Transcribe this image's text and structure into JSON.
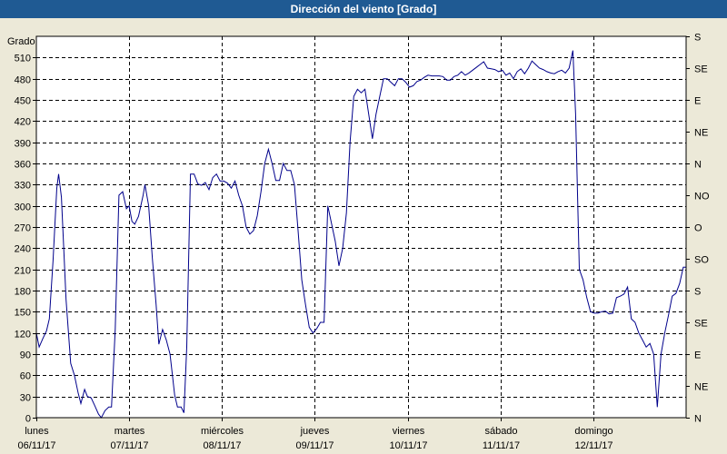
{
  "window": {
    "title": "Dirección del viento [Grado]"
  },
  "chart_data": {
    "type": "line",
    "title": "Dirección del viento [Grado]",
    "ylabel": "Grado",
    "ylim": [
      0,
      540
    ],
    "yticks": [
      0,
      30,
      60,
      90,
      120,
      150,
      180,
      210,
      240,
      270,
      300,
      330,
      360,
      390,
      420,
      450,
      480,
      510
    ],
    "right_axis_labels": [
      "N",
      "NE",
      "E",
      "SE",
      "S",
      "SO",
      "O",
      "NO",
      "N",
      "NE",
      "E",
      "SE",
      "S"
    ],
    "right_axis_values": [
      0,
      30,
      60,
      90,
      120,
      150,
      180,
      210,
      240,
      270,
      300,
      330,
      360
    ],
    "right_axis_scale": 1.5,
    "xlim": [
      0,
      7
    ],
    "xticks": [
      {
        "day": "lunes",
        "date": "06/11/17"
      },
      {
        "day": "martes",
        "date": "07/11/17"
      },
      {
        "day": "miércoles",
        "date": "08/11/17"
      },
      {
        "day": "jueves",
        "date": "09/11/17"
      },
      {
        "day": "viernes",
        "date": "10/11/17"
      },
      {
        "day": "sábado",
        "date": "11/11/17"
      },
      {
        "day": "domingo",
        "date": "12/11/17"
      }
    ],
    "grid": true,
    "series": [
      {
        "color": "#00008b",
        "points": [
          [
            0.0,
            120
          ],
          [
            0.03,
            100
          ],
          [
            0.07,
            112
          ],
          [
            0.11,
            123
          ],
          [
            0.14,
            140
          ],
          [
            0.18,
            223
          ],
          [
            0.22,
            325
          ],
          [
            0.24,
            345
          ],
          [
            0.27,
            312
          ],
          [
            0.32,
            167
          ],
          [
            0.37,
            77
          ],
          [
            0.41,
            60
          ],
          [
            0.45,
            35
          ],
          [
            0.48,
            20
          ],
          [
            0.52,
            40
          ],
          [
            0.55,
            30
          ],
          [
            0.59,
            28
          ],
          [
            0.63,
            17
          ],
          [
            0.67,
            5
          ],
          [
            0.7,
            0
          ],
          [
            0.74,
            10
          ],
          [
            0.78,
            15
          ],
          [
            0.81,
            15
          ],
          [
            0.85,
            125
          ],
          [
            0.89,
            315
          ],
          [
            0.93,
            320
          ],
          [
            0.97,
            296
          ],
          [
            1.0,
            300
          ],
          [
            1.03,
            278
          ],
          [
            1.06,
            274
          ],
          [
            1.1,
            285
          ],
          [
            1.15,
            315
          ],
          [
            1.17,
            330
          ],
          [
            1.21,
            300
          ],
          [
            1.25,
            225
          ],
          [
            1.29,
            160
          ],
          [
            1.32,
            104
          ],
          [
            1.36,
            125
          ],
          [
            1.4,
            110
          ],
          [
            1.44,
            90
          ],
          [
            1.49,
            32
          ],
          [
            1.52,
            15
          ],
          [
            1.56,
            15
          ],
          [
            1.59,
            7
          ],
          [
            1.62,
            100
          ],
          [
            1.66,
            345
          ],
          [
            1.7,
            345
          ],
          [
            1.74,
            331
          ],
          [
            1.78,
            329
          ],
          [
            1.82,
            333
          ],
          [
            1.86,
            323
          ],
          [
            1.9,
            340
          ],
          [
            1.94,
            345
          ],
          [
            1.98,
            335
          ],
          [
            2.02,
            335
          ],
          [
            2.06,
            332
          ],
          [
            2.1,
            325
          ],
          [
            2.14,
            335
          ],
          [
            2.18,
            315
          ],
          [
            2.22,
            300
          ],
          [
            2.26,
            270
          ],
          [
            2.3,
            260
          ],
          [
            2.34,
            265
          ],
          [
            2.38,
            286
          ],
          [
            2.42,
            320
          ],
          [
            2.46,
            360
          ],
          [
            2.5,
            380
          ],
          [
            2.54,
            360
          ],
          [
            2.58,
            336
          ],
          [
            2.62,
            336
          ],
          [
            2.66,
            360
          ],
          [
            2.7,
            350
          ],
          [
            2.74,
            350
          ],
          [
            2.78,
            330
          ],
          [
            2.82,
            265
          ],
          [
            2.86,
            195
          ],
          [
            2.9,
            160
          ],
          [
            2.94,
            128
          ],
          [
            2.98,
            120
          ],
          [
            3.02,
            126
          ],
          [
            3.06,
            135
          ],
          [
            3.1,
            135
          ],
          [
            3.14,
            300
          ],
          [
            3.18,
            275
          ],
          [
            3.22,
            250
          ],
          [
            3.26,
            215
          ],
          [
            3.3,
            240
          ],
          [
            3.34,
            290
          ],
          [
            3.38,
            390
          ],
          [
            3.42,
            455
          ],
          [
            3.46,
            465
          ],
          [
            3.5,
            460
          ],
          [
            3.54,
            465
          ],
          [
            3.58,
            430
          ],
          [
            3.62,
            395
          ],
          [
            3.66,
            430
          ],
          [
            3.7,
            455
          ],
          [
            3.74,
            480
          ],
          [
            3.78,
            480
          ],
          [
            3.82,
            475
          ],
          [
            3.86,
            470
          ],
          [
            3.9,
            480
          ],
          [
            3.94,
            480
          ],
          [
            3.98,
            475
          ],
          [
            4.02,
            468
          ],
          [
            4.06,
            470
          ],
          [
            4.1,
            476
          ],
          [
            4.14,
            478
          ],
          [
            4.18,
            482
          ],
          [
            4.22,
            485
          ],
          [
            4.26,
            484
          ],
          [
            4.3,
            484
          ],
          [
            4.34,
            484
          ],
          [
            4.38,
            483
          ],
          [
            4.42,
            478
          ],
          [
            4.46,
            478
          ],
          [
            4.5,
            483
          ],
          [
            4.54,
            485
          ],
          [
            4.58,
            490
          ],
          [
            4.62,
            485
          ],
          [
            4.66,
            488
          ],
          [
            4.7,
            492
          ],
          [
            4.74,
            496
          ],
          [
            4.78,
            500
          ],
          [
            4.82,
            504
          ],
          [
            4.86,
            495
          ],
          [
            4.9,
            494
          ],
          [
            4.94,
            493
          ],
          [
            4.98,
            490
          ],
          [
            5.02,
            492
          ],
          [
            5.06,
            485
          ],
          [
            5.1,
            488
          ],
          [
            5.14,
            480
          ],
          [
            5.18,
            490
          ],
          [
            5.22,
            494
          ],
          [
            5.26,
            487
          ],
          [
            5.3,
            495
          ],
          [
            5.34,
            505
          ],
          [
            5.38,
            500
          ],
          [
            5.42,
            495
          ],
          [
            5.46,
            493
          ],
          [
            5.5,
            490
          ],
          [
            5.54,
            488
          ],
          [
            5.58,
            487
          ],
          [
            5.62,
            490
          ],
          [
            5.66,
            492
          ],
          [
            5.7,
            488
          ],
          [
            5.74,
            495
          ],
          [
            5.78,
            520
          ],
          [
            5.81,
            430
          ],
          [
            5.85,
            210
          ],
          [
            5.89,
            195
          ],
          [
            5.93,
            170
          ],
          [
            5.97,
            150
          ],
          [
            6.01,
            148
          ],
          [
            6.05,
            148
          ],
          [
            6.09,
            150
          ],
          [
            6.13,
            151
          ],
          [
            6.17,
            147
          ],
          [
            6.21,
            148
          ],
          [
            6.25,
            170
          ],
          [
            6.29,
            172
          ],
          [
            6.33,
            175
          ],
          [
            6.37,
            185
          ],
          [
            6.41,
            140
          ],
          [
            6.45,
            135
          ],
          [
            6.49,
            120
          ],
          [
            6.53,
            110
          ],
          [
            6.57,
            100
          ],
          [
            6.61,
            105
          ],
          [
            6.65,
            90
          ],
          [
            6.69,
            15
          ],
          [
            6.73,
            90
          ],
          [
            6.77,
            120
          ],
          [
            6.81,
            145
          ],
          [
            6.85,
            172
          ],
          [
            6.89,
            176
          ],
          [
            6.93,
            190
          ],
          [
            6.97,
            213
          ],
          [
            7.0,
            213
          ]
        ]
      }
    ]
  }
}
